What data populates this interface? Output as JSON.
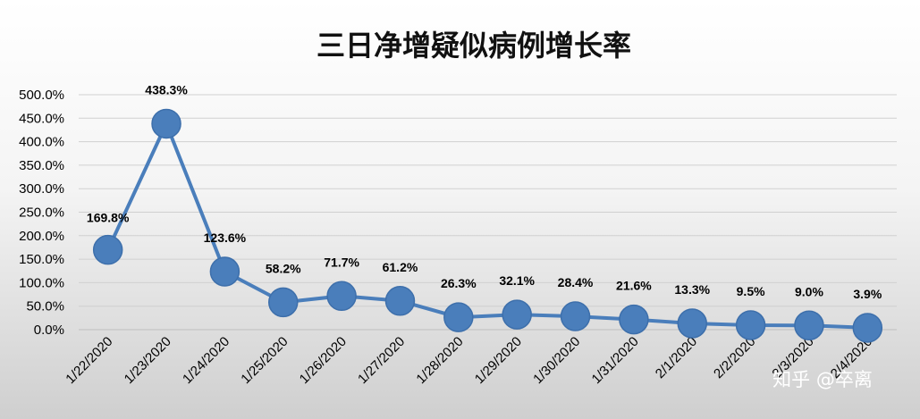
{
  "chart_data": {
    "type": "line",
    "title": "三日净增疑似病例增长率",
    "xlabel": "",
    "ylabel": "",
    "ylim": [
      0,
      500
    ],
    "y_ticks": [
      "0.0%",
      "50.0%",
      "100.0%",
      "150.0%",
      "200.0%",
      "250.0%",
      "300.0%",
      "350.0%",
      "400.0%",
      "450.0%",
      "500.0%"
    ],
    "categories": [
      "1/22/2020",
      "1/23/2020",
      "1/24/2020",
      "1/25/2020",
      "1/26/2020",
      "1/27/2020",
      "1/28/2020",
      "1/29/2020",
      "1/30/2020",
      "1/31/2020",
      "2/1/2020",
      "2/2/2020",
      "2/3/2020",
      "2/4/2020"
    ],
    "series": [
      {
        "values": [
          169.8,
          438.3,
          123.6,
          58.2,
          71.7,
          61.2,
          26.3,
          32.1,
          28.4,
          21.6,
          13.3,
          9.5,
          9.0,
          3.9
        ],
        "labels": [
          "169.8%",
          "438.3%",
          "123.6%",
          "58.2%",
          "71.7%",
          "61.2%",
          "26.3%",
          "32.1%",
          "28.4%",
          "21.6%",
          "13.3%",
          "9.5%",
          "9.0%",
          "3.9%"
        ],
        "color": "#4a7ebb"
      }
    ],
    "grid": true,
    "legend": "none"
  },
  "watermark": {
    "text": "知乎 @卒离"
  }
}
